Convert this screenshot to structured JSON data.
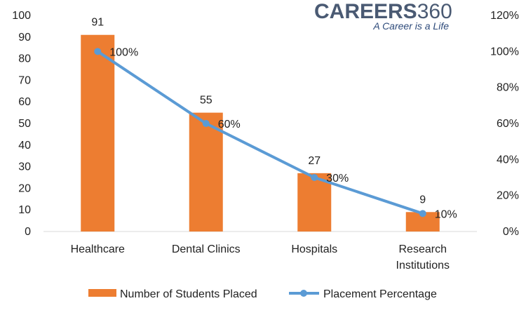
{
  "logo": {
    "brand": "CAREERS",
    "brand_number": "360",
    "tagline": "A Career is a Life"
  },
  "chart_data": {
    "type": "bar",
    "categories": [
      [
        "Healthcare"
      ],
      [
        "Dental Clinics"
      ],
      [
        "Hospitals"
      ],
      [
        "Research",
        "Institutions"
      ]
    ],
    "series": [
      {
        "name": "Number of Students Placed",
        "type": "bar",
        "axis": "left",
        "color": "#ed7d31",
        "values": [
          91,
          55,
          27,
          9
        ],
        "labels": [
          "91",
          "55",
          "27",
          "9"
        ]
      },
      {
        "name": "Placement Percentage",
        "type": "line",
        "axis": "right",
        "color": "#5b9bd5",
        "values": [
          100,
          60,
          30,
          10
        ],
        "labels": [
          "100%",
          "60%",
          "30%",
          "10%"
        ]
      }
    ],
    "y_left": {
      "ylim": [
        0,
        100
      ],
      "ticks": [
        "0",
        "10",
        "20",
        "30",
        "40",
        "50",
        "60",
        "70",
        "80",
        "90",
        "100"
      ]
    },
    "y_right": {
      "ylim": [
        0,
        120
      ],
      "ticks": [
        "0%",
        "20%",
        "40%",
        "60%",
        "80%",
        "100%",
        "120%"
      ]
    },
    "legend_position": "bottom",
    "grid": false
  }
}
